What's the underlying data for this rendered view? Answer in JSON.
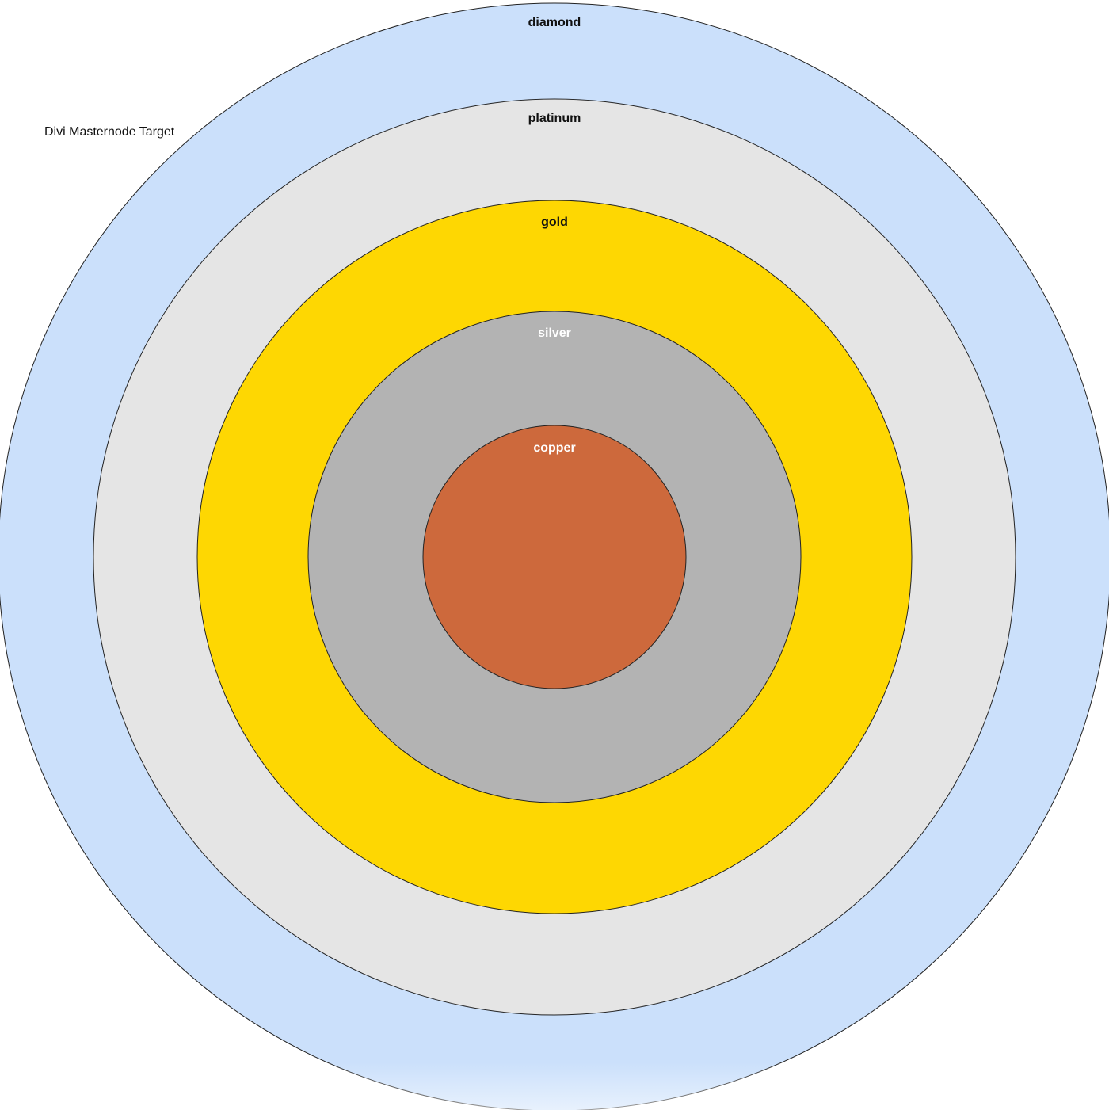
{
  "diagram": {
    "title": "Divi Masternode Target",
    "rings": [
      {
        "id": "diamond",
        "label": "diamond",
        "fill": "#cbe0fb",
        "label_color": "#111111"
      },
      {
        "id": "platinum",
        "label": "platinum",
        "fill": "#e5e5e5",
        "label_color": "#111111"
      },
      {
        "id": "gold",
        "label": "gold",
        "fill": "#fed702",
        "label_color": "#111111"
      },
      {
        "id": "silver",
        "label": "silver",
        "fill": "#b3b3b3",
        "label_color": "#ffffff"
      },
      {
        "id": "copper",
        "label": "copper",
        "fill": "#cd693c",
        "label_color": "#ffffff"
      }
    ],
    "stroke_color": "#222222"
  }
}
